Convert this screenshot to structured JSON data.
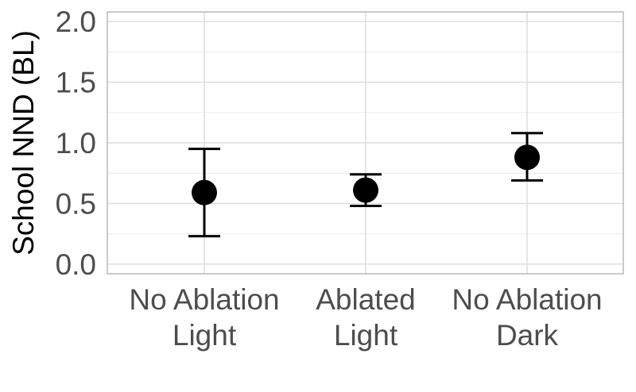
{
  "chart_data": {
    "type": "scatter",
    "title": "",
    "xlabel": "",
    "ylabel": "School NND (BL)",
    "ylim": [
      -0.08,
      2.08
    ],
    "yticks": [
      "0.0",
      "0.5",
      "1.0",
      "1.5",
      "2.0"
    ],
    "ytick_values": [
      0.0,
      0.5,
      1.0,
      1.5,
      2.0
    ],
    "categories": [
      {
        "line1": "No Ablation",
        "line2": "Light"
      },
      {
        "line1": "Ablated",
        "line2": "Light"
      },
      {
        "line1": "No Ablation",
        "line2": "Dark"
      }
    ],
    "series": [
      {
        "values": [
          0.59,
          0.61,
          0.88
        ],
        "lower": [
          0.23,
          0.48,
          0.69
        ],
        "upper": [
          0.95,
          0.74,
          1.08
        ]
      }
    ],
    "grid": true,
    "legend": "none",
    "colors": {
      "point": "#000000",
      "grid": "#dcdcdc",
      "panel_border": "#b3b3b3",
      "tick_text": "#4d4d4d"
    }
  }
}
